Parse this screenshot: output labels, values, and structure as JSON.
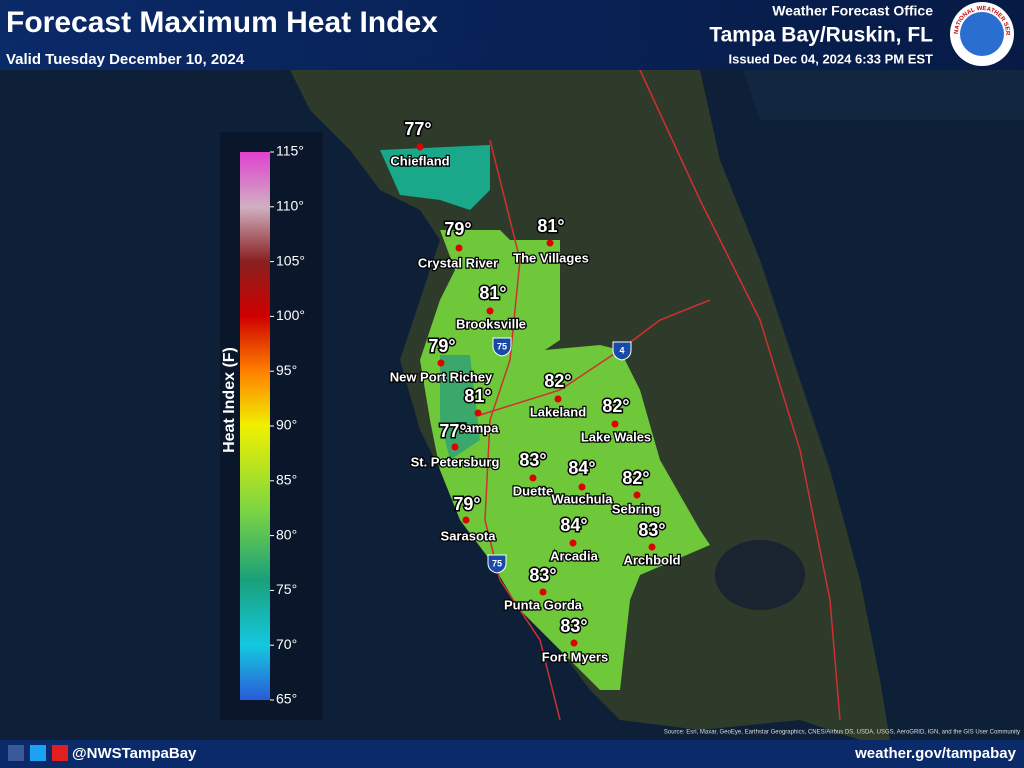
{
  "header": {
    "title": "Forecast Maximum Heat Index",
    "valid": "Valid Tuesday December 10, 2024",
    "office_label": "Weather Forecast Office",
    "office": "Tampa Bay/Ruskin, FL",
    "issued": "Issued Dec 04, 2024 6:33 PM EST",
    "logo_text": "NATIONAL WEATHER SERVICE"
  },
  "legend": {
    "title": "Heat Index (F)",
    "ticks": [
      "115°",
      "110°",
      "105°",
      "100°",
      "95°",
      "90°",
      "85°",
      "80°",
      "75°",
      "70°",
      "65°"
    ]
  },
  "cities": [
    {
      "name": "Chiefland",
      "value": "77°"
    },
    {
      "name": "Crystal River",
      "value": "79°"
    },
    {
      "name": "The Villages",
      "value": "81°"
    },
    {
      "name": "Brooksville",
      "value": "81°"
    },
    {
      "name": "New Port Richey",
      "value": "79°"
    },
    {
      "name": "Tampa",
      "value": "81°"
    },
    {
      "name": "Lakeland",
      "value": "82°"
    },
    {
      "name": "Lake Wales",
      "value": "82°"
    },
    {
      "name": "St. Petersburg",
      "value": "77°"
    },
    {
      "name": "Duette",
      "value": "83°"
    },
    {
      "name": "Wauchula",
      "value": "84°"
    },
    {
      "name": "Sebring",
      "value": "82°"
    },
    {
      "name": "Sarasota",
      "value": "79°"
    },
    {
      "name": "Arcadia",
      "value": "84°"
    },
    {
      "name": "Archbold",
      "value": "83°"
    },
    {
      "name": "Punta Gorda",
      "value": "83°"
    },
    {
      "name": "Fort Myers",
      "value": "83°"
    }
  ],
  "shields": [
    "75",
    "4",
    "75"
  ],
  "footer": {
    "handle": "@NWSTampaBay",
    "url": "weather.gov/tampabay",
    "source": "Source: Esri, Maxar, GeoEye, Earthstar Geographics, CNES/Airbus DS, USDA, USGS, AeroGRID, IGN, and the GIS User Community"
  }
}
